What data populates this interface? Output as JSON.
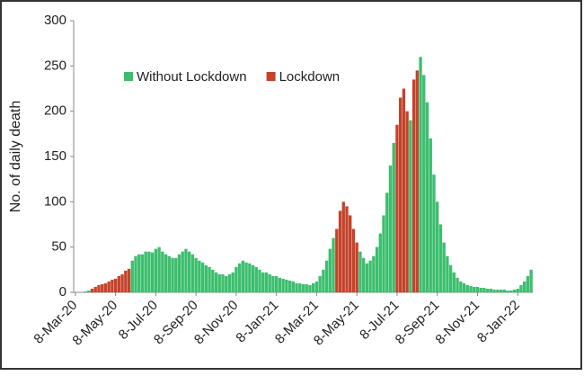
{
  "chart_data": {
    "type": "bar",
    "y_label": "No. of daily death",
    "categories": [
      "8-Mar-20",
      null,
      null,
      null,
      null,
      null,
      null,
      null,
      null,
      null,
      null,
      null,
      "8-May-20",
      null,
      null,
      null,
      null,
      null,
      null,
      null,
      null,
      null,
      null,
      null,
      "8-Jul-20",
      null,
      null,
      null,
      null,
      null,
      null,
      null,
      null,
      null,
      null,
      null,
      "8-Sep-20",
      null,
      null,
      null,
      null,
      null,
      null,
      null,
      null,
      null,
      null,
      null,
      "8-Nov-20",
      null,
      null,
      null,
      null,
      null,
      null,
      null,
      null,
      null,
      null,
      null,
      "8-Jan-21",
      null,
      null,
      null,
      null,
      null,
      null,
      null,
      null,
      null,
      null,
      null,
      "8-Mar-21",
      null,
      null,
      null,
      null,
      null,
      null,
      null,
      null,
      null,
      null,
      null,
      "8-May-21",
      null,
      null,
      null,
      null,
      null,
      null,
      null,
      null,
      null,
      null,
      null,
      "8-Jul-21",
      null,
      null,
      null,
      null,
      null,
      null,
      null,
      null,
      null,
      null,
      null,
      "8-Sep-21",
      null,
      null,
      null,
      null,
      null,
      null,
      null,
      null,
      null,
      null,
      null,
      "8-Nov-21",
      null,
      null,
      null,
      null,
      null,
      null,
      null,
      null,
      null,
      null,
      null,
      "8-Jan-22",
      null,
      null,
      null,
      null
    ],
    "series": [
      {
        "name": "Without Lockdown",
        "color": "#3dbe6e",
        "values": [
          0,
          0,
          0,
          1,
          2,
          null,
          null,
          null,
          null,
          null,
          null,
          null,
          null,
          null,
          null,
          null,
          null,
          35,
          40,
          42,
          42,
          45,
          45,
          44,
          48,
          50,
          45,
          42,
          40,
          38,
          38,
          42,
          45,
          48,
          45,
          42,
          38,
          35,
          33,
          30,
          28,
          25,
          22,
          20,
          20,
          18,
          20,
          22,
          28,
          32,
          35,
          33,
          32,
          30,
          28,
          25,
          22,
          22,
          20,
          18,
          18,
          16,
          15,
          14,
          13,
          12,
          10,
          10,
          9,
          9,
          8,
          10,
          12,
          18,
          25,
          35,
          48,
          60,
          null,
          null,
          null,
          null,
          null,
          null,
          null,
          45,
          38,
          32,
          35,
          40,
          50,
          65,
          85,
          110,
          140,
          165,
          null,
          null,
          null,
          null,
          190,
          null,
          null,
          260,
          240,
          210,
          170,
          130,
          100,
          75,
          55,
          40,
          30,
          22,
          16,
          12,
          10,
          8,
          7,
          6,
          6,
          5,
          5,
          4,
          4,
          3,
          3,
          3,
          3,
          2,
          2,
          3,
          4,
          8,
          12,
          18,
          25
        ]
      },
      {
        "name": "Lockdown",
        "color": "#c4432a",
        "values": [
          null,
          null,
          null,
          null,
          null,
          4,
          6,
          8,
          9,
          10,
          12,
          14,
          15,
          18,
          20,
          24,
          26,
          null,
          null,
          null,
          null,
          null,
          null,
          null,
          null,
          null,
          null,
          null,
          null,
          null,
          null,
          null,
          null,
          null,
          null,
          null,
          null,
          null,
          null,
          null,
          null,
          null,
          null,
          null,
          null,
          null,
          null,
          null,
          null,
          null,
          null,
          null,
          null,
          null,
          null,
          null,
          null,
          null,
          null,
          null,
          null,
          null,
          null,
          null,
          null,
          null,
          null,
          null,
          null,
          null,
          null,
          null,
          null,
          null,
          null,
          null,
          null,
          null,
          70,
          90,
          100,
          95,
          85,
          70,
          55,
          null,
          null,
          null,
          null,
          null,
          null,
          null,
          null,
          null,
          null,
          null,
          185,
          215,
          225,
          200,
          null,
          235,
          245,
          null,
          null,
          null,
          null,
          null,
          null,
          null,
          null,
          null,
          null,
          null,
          null,
          null,
          null,
          null,
          null,
          null,
          null,
          null,
          null,
          null,
          null,
          null,
          null,
          null,
          null,
          null,
          null,
          null,
          null,
          null,
          null,
          null,
          null
        ]
      }
    ],
    "ylim": [
      0,
      300
    ],
    "yticks": [
      0,
      50,
      100,
      150,
      200,
      250,
      300
    ],
    "grid": false
  }
}
